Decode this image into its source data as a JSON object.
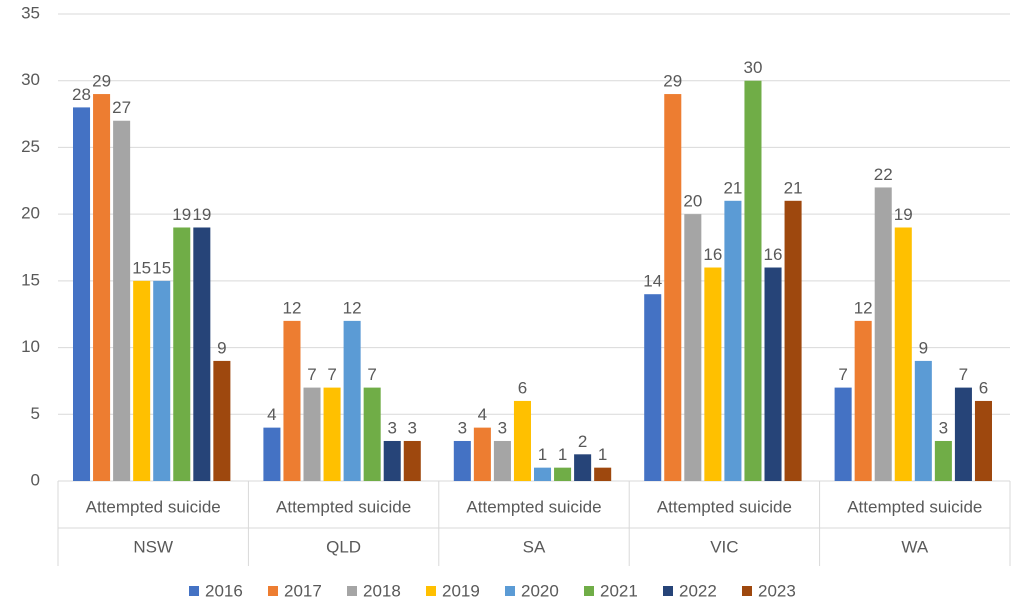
{
  "chart_data": {
    "type": "bar",
    "categories": [
      "Attempted suicide",
      "Attempted suicide",
      "Attempted suicide",
      "Attempted suicide",
      "Attempted suicide"
    ],
    "groups": [
      "NSW",
      "QLD",
      "SA",
      "VIC",
      "WA"
    ],
    "series": [
      {
        "name": "2016",
        "color": "#4472c4",
        "values": [
          28,
          4,
          3,
          14,
          7
        ]
      },
      {
        "name": "2017",
        "color": "#ed7d31",
        "values": [
          29,
          12,
          4,
          29,
          12
        ]
      },
      {
        "name": "2018",
        "color": "#a5a5a5",
        "values": [
          27,
          7,
          3,
          20,
          22
        ]
      },
      {
        "name": "2019",
        "color": "#ffc000",
        "values": [
          15,
          7,
          6,
          16,
          19
        ]
      },
      {
        "name": "2020",
        "color": "#5b9bd5",
        "values": [
          15,
          12,
          1,
          21,
          9
        ]
      },
      {
        "name": "2021",
        "color": "#70ad47",
        "values": [
          19,
          7,
          1,
          30,
          3
        ]
      },
      {
        "name": "2022",
        "color": "#264478",
        "values": [
          19,
          3,
          2,
          16,
          7
        ]
      },
      {
        "name": "2023",
        "color": "#9e480e",
        "values": [
          9,
          3,
          1,
          21,
          6
        ]
      }
    ],
    "ylim": [
      0,
      35
    ],
    "yticks": [
      0,
      5,
      10,
      15,
      20,
      25,
      30,
      35
    ],
    "grid": true,
    "legend": "bottom",
    "data_labels": true
  }
}
